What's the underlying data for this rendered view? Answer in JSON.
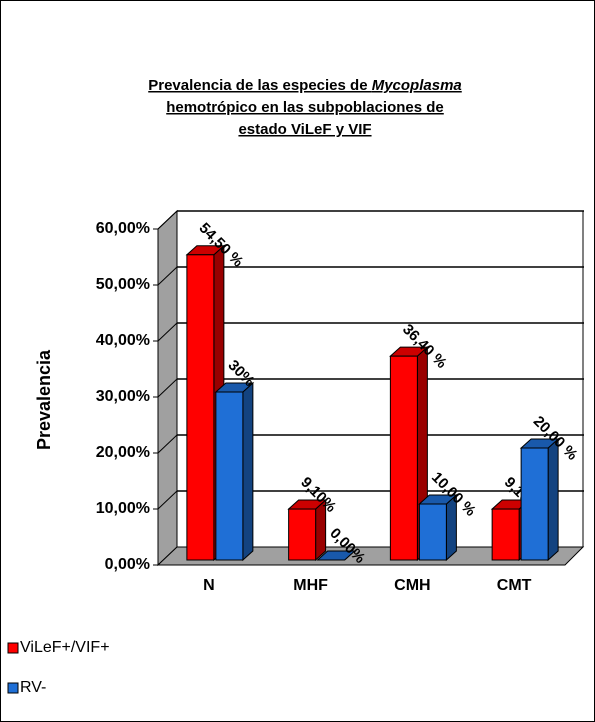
{
  "chart_data": {
    "type": "bar3d",
    "title": [
      "Prevalencia de las especies de ",
      "Mycoplasma",
      "hemotrópico en las subpoblaciones de",
      "estado ViLeF y VIF"
    ],
    "y_label": "Prevalencia",
    "categories": [
      "N",
      "MHF",
      "CMH",
      "CMT"
    ],
    "series": [
      {
        "name": "ViLeF+/VIF+",
        "color": "#ff0000",
        "values": [
          54.5,
          9.1,
          36.4,
          9.1
        ],
        "value_labels": [
          "54,50 %",
          "9,10%",
          "36,40 %",
          "9,10%"
        ]
      },
      {
        "name": "RV-",
        "color": "#1f6fd6",
        "values": [
          30,
          0,
          10,
          20
        ],
        "value_labels": [
          "30%",
          "0,00%",
          "10,00 %",
          "20,00 %"
        ]
      }
    ],
    "ylim": [
      0,
      60
    ],
    "yticks": [
      {
        "value": 0,
        "label": "0,00%"
      },
      {
        "value": 10,
        "label": "10,00%"
      },
      {
        "value": 20,
        "label": "20,00%"
      },
      {
        "value": 30,
        "label": "30,00%"
      },
      {
        "value": 40,
        "label": "40,00%"
      },
      {
        "value": 50,
        "label": "50,00%"
      },
      {
        "value": 60,
        "label": "60,00%"
      }
    ],
    "grid": true
  }
}
